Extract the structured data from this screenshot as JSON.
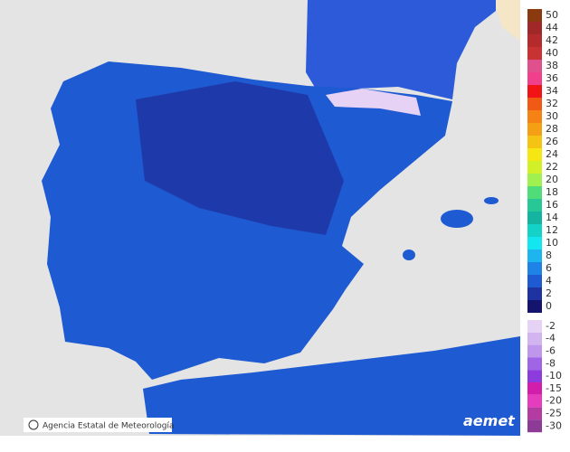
{
  "attribution": "Agencia Estatal de Meteorología",
  "logo": "aemet",
  "legend": {
    "upper": [
      {
        "label": "50",
        "color": "#8b3a10"
      },
      {
        "label": "44",
        "color": "#a02828"
      },
      {
        "label": "42",
        "color": "#b52a2a"
      },
      {
        "label": "40",
        "color": "#c83232"
      },
      {
        "label": "38",
        "color": "#e0508c"
      },
      {
        "label": "36",
        "color": "#f0408c"
      },
      {
        "label": "34",
        "color": "#f01414"
      },
      {
        "label": "32",
        "color": "#f05a14"
      },
      {
        "label": "30",
        "color": "#f58214"
      },
      {
        "label": "28",
        "color": "#f5a014"
      },
      {
        "label": "26",
        "color": "#f5c314"
      },
      {
        "label": "24",
        "color": "#f5e614"
      },
      {
        "label": "22",
        "color": "#d2f028"
      },
      {
        "label": "20",
        "color": "#a0f050"
      },
      {
        "label": "18",
        "color": "#50dc78"
      },
      {
        "label": "16",
        "color": "#28c896"
      },
      {
        "label": "14",
        "color": "#14b4a0"
      },
      {
        "label": "12",
        "color": "#14d2c8"
      },
      {
        "label": "10",
        "color": "#14e6f0"
      },
      {
        "label": "8",
        "color": "#1eb4f0"
      },
      {
        "label": "6",
        "color": "#1e82e6"
      },
      {
        "label": "4",
        "color": "#1e5ad2"
      },
      {
        "label": "2",
        "color": "#1e32a0"
      },
      {
        "label": "0",
        "color": "#14146e"
      }
    ],
    "lower": [
      {
        "label": "-2",
        "color": "#e6d2f5"
      },
      {
        "label": "-4",
        "color": "#d2b4f0"
      },
      {
        "label": "-6",
        "color": "#be96eb"
      },
      {
        "label": "-8",
        "color": "#a064e6"
      },
      {
        "label": "-10",
        "color": "#8c3cdc"
      },
      {
        "label": "-15",
        "color": "#d21eaa"
      },
      {
        "label": "-20",
        "color": "#e63cbe"
      },
      {
        "label": "-25",
        "color": "#b43ca0"
      },
      {
        "label": "-30",
        "color": "#8c3c96"
      }
    ]
  }
}
